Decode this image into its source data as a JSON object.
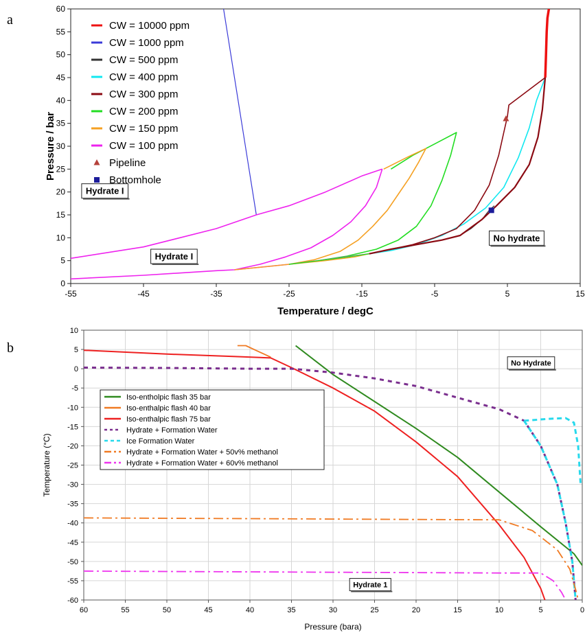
{
  "panel_labels": [
    "a",
    "b"
  ],
  "chart_data": [
    {
      "type": "line",
      "panel": "a",
      "xlabel": "Temperature / degC",
      "ylabel": "Pressure / bar",
      "xlim": [
        -55,
        15
      ],
      "ylim": [
        0,
        60
      ],
      "xticks": [
        -55,
        -45,
        -35,
        -25,
        -15,
        -5,
        5,
        15
      ],
      "yticks": [
        0,
        5,
        10,
        15,
        20,
        25,
        30,
        35,
        40,
        45,
        50,
        55,
        60
      ],
      "grid": false,
      "legend_position": "top-left",
      "series": [
        {
          "name": "CW = 10000 ppm",
          "color": "#ee1111",
          "width": 3.5,
          "points": [
            [
              10.2,
              45
            ],
            [
              10.3,
              50
            ],
            [
              10.4,
              55
            ],
            [
              10.5,
              58
            ],
            [
              10.7,
              60
            ]
          ]
        },
        {
          "name": "CW = 1000 ppm",
          "color": "#3a3ad8",
          "width": 1.2,
          "points": [
            [
              -29.5,
              15
            ],
            [
              -30.5,
              25
            ],
            [
              -31.5,
              35
            ],
            [
              -32.5,
              45
            ],
            [
              -33.5,
              55
            ],
            [
              -34,
              60
            ]
          ]
        },
        {
          "name": "CW = 500 ppm",
          "color": "#333333",
          "width": 1.2,
          "points": [
            [
              -1.5,
              10.5
            ],
            [
              0,
              12
            ],
            [
              1.5,
              14
            ],
            [
              2.5,
              16
            ],
            [
              3.2,
              17
            ]
          ]
        },
        {
          "name": "CW = 400 ppm",
          "color": "#11e8f0",
          "width": 1.6,
          "points": [
            [
              -14,
              6.5
            ],
            [
              -11,
              7.2
            ],
            [
              -7.5,
              8.5
            ],
            [
              -4,
              10.5
            ],
            [
              -1,
              13
            ],
            [
              2,
              16.5
            ],
            [
              4.5,
              21
            ],
            [
              6.5,
              27.5
            ],
            [
              8,
              34
            ],
            [
              9,
              40
            ],
            [
              10.2,
              45
            ]
          ]
        },
        {
          "name": "CW = 300 ppm",
          "color": "#8b0a12",
          "width": 1.6,
          "points": [
            [
              -14,
              6.5
            ],
            [
              -11,
              7.5
            ],
            [
              -8,
              8.5
            ],
            [
              -5,
              10
            ],
            [
              -2,
              12
            ],
            [
              0.5,
              16
            ],
            [
              2.5,
              21.5
            ],
            [
              3.8,
              28
            ],
            [
              4.5,
              33
            ],
            [
              5,
              36.5
            ],
            [
              5.2,
              39
            ],
            [
              10.2,
              45
            ]
          ]
        },
        {
          "name": "CW = 300 ppm",
          "color": "#8b0a12",
          "width": 2.2,
          "points": [
            [
              -14,
              6.5
            ],
            [
              -11,
              7.5
            ],
            [
              -7.5,
              8.5
            ],
            [
              -4,
              9.5
            ],
            [
              -1.5,
              10.5
            ],
            [
              1.5,
              14
            ],
            [
              3.5,
              17
            ],
            [
              6,
              21
            ],
            [
              8,
              26
            ],
            [
              9.2,
              32
            ],
            [
              9.8,
              38
            ],
            [
              10.2,
              45
            ]
          ]
        },
        {
          "name": "CW = 200 ppm",
          "color": "#22dd22",
          "width": 1.6,
          "points": [
            [
              -21,
              5
            ],
            [
              -17,
              6
            ],
            [
              -13,
              7.5
            ],
            [
              -10,
              9.5
            ],
            [
              -7.5,
              12.5
            ],
            [
              -5.5,
              17
            ],
            [
              -4,
              22.5
            ],
            [
              -2.8,
              28
            ],
            [
              -2,
              33
            ],
            [
              -5,
              30.5
            ],
            [
              -8,
              28
            ],
            [
              -11,
              25
            ]
          ]
        },
        {
          "name": "CW = 150 ppm",
          "color": "#f5a022",
          "width": 1.6,
          "points": [
            [
              -25,
              4.2
            ],
            [
              -21.5,
              5.2
            ],
            [
              -18,
              7
            ],
            [
              -15.5,
              9.5
            ],
            [
              -13.5,
              12.5
            ],
            [
              -11.5,
              16
            ],
            [
              -10,
              19.5
            ],
            [
              -8.5,
              23
            ],
            [
              -7.2,
              26.5
            ],
            [
              -6.2,
              29.5
            ],
            [
              -8.5,
              27.8
            ],
            [
              -12,
              25
            ]
          ]
        },
        {
          "name": "CW = 100 ppm",
          "color": "#ee22ee",
          "width": 1.6,
          "points": [
            [
              -32.5,
              3
            ],
            [
              -29,
              4.2
            ],
            [
              -25.5,
              5.8
            ],
            [
              -22,
              7.8
            ],
            [
              -19,
              10.5
            ],
            [
              -16.5,
              13.5
            ],
            [
              -14.5,
              17
            ],
            [
              -13,
              21
            ],
            [
              -12.2,
              25
            ]
          ]
        },
        {
          "name": "CW = 100 ppm",
          "color": "#ee22ee",
          "width": 1.6,
          "points": [
            [
              -55,
              5.5
            ],
            [
              -45,
              8
            ],
            [
              -35,
              12
            ],
            [
              -29.5,
              15
            ],
            [
              -25,
              17
            ],
            [
              -20,
              20
            ],
            [
              -15,
              23.5
            ],
            [
              -12.2,
              25
            ]
          ]
        },
        {
          "name": "CW = 100 ppm",
          "color": "#ee22ee",
          "width": 1.6,
          "points": [
            [
              -55,
              1
            ],
            [
              -45,
              1.8
            ],
            [
              -35,
              2.8
            ],
            [
              -32.5,
              3
            ],
            [
              -25,
              4.2
            ],
            [
              -21,
              5
            ],
            [
              -14,
              6.5
            ]
          ]
        },
        {
          "name": "CW = 150 ppm",
          "color": "#f5a022",
          "width": 1.4,
          "points": [
            [
              -32.5,
              3
            ],
            [
              -28,
              3.7
            ],
            [
              -25,
              4.2
            ],
            [
              -20,
              5
            ],
            [
              -16,
              5.8
            ],
            [
              -14,
              6.5
            ]
          ]
        },
        {
          "name": "CW = 200 ppm",
          "color": "#22dd22",
          "width": 1.4,
          "points": [
            [
              -25,
              4.2
            ],
            [
              -21,
              5
            ],
            [
              -17,
              5.8
            ],
            [
              -14,
              6.5
            ]
          ]
        }
      ],
      "markers": [
        {
          "name": "Pipeline",
          "shape": "triangle",
          "color": "#b5413a",
          "x": 4.8,
          "y": 36
        },
        {
          "name": "Bottomhole",
          "shape": "square",
          "color": "#1c1c9a",
          "x": 2.8,
          "y": 16
        }
      ],
      "legend": [
        {
          "label": "CW = 10000 ppm",
          "color": "#ee1111",
          "kind": "line"
        },
        {
          "label": "CW = 1000 ppm",
          "color": "#3a3ad8",
          "kind": "line"
        },
        {
          "label": "CW = 500 ppm",
          "color": "#333333",
          "kind": "line"
        },
        {
          "label": "CW = 400 ppm",
          "color": "#11e8f0",
          "kind": "line"
        },
        {
          "label": "CW = 300 ppm",
          "color": "#8b0a12",
          "kind": "line"
        },
        {
          "label": "CW = 200 ppm",
          "color": "#22dd22",
          "kind": "line"
        },
        {
          "label": "CW = 150 ppm",
          "color": "#f5a022",
          "kind": "line"
        },
        {
          "label": "CW = 100 ppm",
          "color": "#ee22ee",
          "kind": "line"
        },
        {
          "label": "Pipeline",
          "color": "#b5413a",
          "kind": "triangle"
        },
        {
          "label": "Bottomhole",
          "color": "#1c1c9a",
          "kind": "square"
        }
      ],
      "annotations": [
        {
          "text": "Hydrate I",
          "x": -53.5,
          "y": 20.3
        },
        {
          "text": "Hydrate I",
          "x": -44,
          "y": 6
        },
        {
          "text": "No hydrate",
          "x": 2.5,
          "y": 10
        }
      ]
    },
    {
      "type": "line",
      "panel": "b",
      "xlabel": "Pressure (bara)",
      "ylabel": "Temperature (°C)",
      "xlim": [
        60,
        0
      ],
      "ylim": [
        -60,
        10
      ],
      "xticks": [
        60,
        55,
        50,
        45,
        40,
        35,
        30,
        25,
        20,
        15,
        10,
        5,
        0
      ],
      "yticks": [
        10,
        5,
        0,
        -5,
        -10,
        -15,
        -20,
        -25,
        -30,
        -35,
        -40,
        -45,
        -50,
        -55,
        -60
      ],
      "grid": true,
      "legend_position": "middle-left",
      "series": [
        {
          "name": "Iso-entholpic flash 35 bar",
          "color": "#2f8a1f",
          "dash": "",
          "width": 2,
          "points": [
            [
              34.5,
              6
            ],
            [
              30,
              -1.5
            ],
            [
              25,
              -8.5
            ],
            [
              20,
              -15.5
            ],
            [
              15,
              -23
            ],
            [
              10,
              -32
            ],
            [
              5,
              -41
            ],
            [
              1,
              -48
            ],
            [
              0,
              -51
            ]
          ]
        },
        {
          "name": "Iso-enthalpic flash 40 bar",
          "color": "#f07a22",
          "dash": "",
          "width": 1.8,
          "points": [
            [
              41.5,
              6
            ],
            [
              40.5,
              6
            ],
            [
              39,
              4.5
            ],
            [
              37.5,
              3
            ]
          ]
        },
        {
          "name": "Iso-enthalpic flash 75 bar",
          "color": "#ee2020",
          "dash": "",
          "width": 2,
          "points": [
            [
              60,
              4.8
            ],
            [
              50,
              3.8
            ],
            [
              42,
              3.2
            ],
            [
              37.5,
              2.8
            ],
            [
              35,
              0.3
            ],
            [
              30,
              -5
            ],
            [
              25,
              -11
            ],
            [
              20,
              -19
            ],
            [
              15,
              -28
            ],
            [
              10,
              -40.5
            ],
            [
              7,
              -49
            ],
            [
              5,
              -57
            ],
            [
              4.5,
              -60
            ]
          ]
        },
        {
          "name": "Hydrate + Formation Water",
          "color": "#7a2e8e",
          "dash": "6,6",
          "width": 3,
          "points": [
            [
              60,
              0.3
            ],
            [
              50,
              0.2
            ],
            [
              40,
              0
            ],
            [
              35,
              0
            ],
            [
              30,
              -1
            ],
            [
              25,
              -2.5
            ],
            [
              20,
              -4.5
            ],
            [
              15,
              -7.5
            ],
            [
              10,
              -10.5
            ],
            [
              7,
              -13.5
            ],
            [
              5,
              -20
            ],
            [
              3,
              -30
            ],
            [
              2,
              -40
            ],
            [
              1.2,
              -50
            ],
            [
              0.8,
              -60
            ]
          ]
        },
        {
          "name": "Ice  Formation Water",
          "color": "#27d9ec",
          "dash": "7,5",
          "width": 3,
          "points": [
            [
              7,
              -13.5
            ],
            [
              5,
              -20
            ],
            [
              3,
              -30
            ],
            [
              2,
              -40
            ],
            [
              1.2,
              -50
            ],
            [
              0.8,
              -60
            ]
          ]
        },
        {
          "name": "Ice  Formation Water",
          "color": "#27d9ec",
          "dash": "7,5",
          "width": 3,
          "points": [
            [
              7,
              -13.5
            ],
            [
              4,
              -13
            ],
            [
              2,
              -12.8
            ],
            [
              1,
              -14
            ],
            [
              0.5,
              -20
            ],
            [
              0.2,
              -30
            ]
          ]
        },
        {
          "name": "Hydrate + Formation Water + 50v% methanol",
          "color": "#f07a22",
          "dash": "14,5,3,5",
          "width": 1.8,
          "points": [
            [
              60,
              -38.7
            ],
            [
              50,
              -38.8
            ],
            [
              40,
              -38.9
            ],
            [
              30,
              -39
            ],
            [
              20,
              -39.1
            ],
            [
              10,
              -39.2
            ],
            [
              6,
              -42
            ],
            [
              3,
              -47
            ],
            [
              1.5,
              -52
            ],
            [
              0.7,
              -58
            ],
            [
              0.5,
              -60
            ]
          ]
        },
        {
          "name": "Hydrate + Formation Water + 60v% methanol",
          "color": "#ee33ee",
          "dash": "14,5,3,5",
          "width": 1.8,
          "points": [
            [
              60,
              -52.5
            ],
            [
              50,
              -52.6
            ],
            [
              40,
              -52.7
            ],
            [
              30,
              -52.8
            ],
            [
              20,
              -52.9
            ],
            [
              10,
              -53
            ],
            [
              5,
              -53
            ],
            [
              3.5,
              -55
            ],
            [
              2.5,
              -58
            ],
            [
              2,
              -60
            ]
          ]
        }
      ],
      "legend": [
        {
          "label": "Iso-entholpic flash 35 bar",
          "color": "#2f8a1f",
          "dash": ""
        },
        {
          "label": "Iso-enthalpic flash 40 bar",
          "color": "#f07a22",
          "dash": ""
        },
        {
          "label": "Iso-enthalpic flash 75 bar",
          "color": "#ee2020",
          "dash": ""
        },
        {
          "label": "Hydrate + Formation Water",
          "color": "#7a2e8e",
          "dash": "4,4"
        },
        {
          "label": "Ice  Formation Water",
          "color": "#27d9ec",
          "dash": "5,4"
        },
        {
          "label": "Hydrate + Formation Water + 50v% methanol",
          "color": "#f07a22",
          "dash": "10,4,3,4"
        },
        {
          "label": "Hydrate + Formation Water + 60v% methanol",
          "color": "#ee33ee",
          "dash": "10,4,3,4"
        }
      ],
      "annotations": [
        {
          "text": "No Hydrate",
          "x": 9,
          "y": 1.5
        },
        {
          "text": "Hydrate 1",
          "x": 28,
          "y": -56
        }
      ]
    }
  ]
}
